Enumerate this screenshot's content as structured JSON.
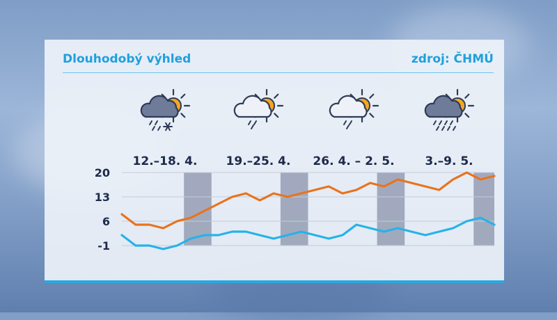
{
  "header": {
    "title": "Dlouhodobý výhled",
    "source": "zdroj: ČHMÚ"
  },
  "weeks": [
    {
      "label": "12.–18. 4.",
      "icon": "cloud-sun-rain-snow-icon"
    },
    {
      "label": "19.–25. 4.",
      "icon": "cloud-sun-drizzle-icon"
    },
    {
      "label": "26. 4. – 2. 5.",
      "icon": "cloud-sun-drizzle-icon"
    },
    {
      "label": "3.–9. 5.",
      "icon": "dark-cloud-sun-rain-icon"
    }
  ],
  "colors": {
    "max": "#e8731e",
    "min": "#26b2ea",
    "weekend": "#8b93ab",
    "grid": "#c3cbdc",
    "text": "#1d2a4a"
  },
  "chart_data": {
    "type": "line",
    "y_ticks": [
      20,
      13,
      6,
      -1
    ],
    "ylim": [
      -1,
      20
    ],
    "grid": true,
    "days": 28,
    "weekend_days": [
      [
        5,
        6
      ],
      [
        12,
        13
      ],
      [
        19,
        20
      ],
      [
        26,
        27
      ]
    ],
    "series": [
      {
        "key": "max",
        "values": [
          8,
          5,
          5,
          4,
          6,
          7,
          9,
          11,
          13,
          14,
          12,
          14,
          13,
          14,
          15,
          16,
          14,
          15,
          17,
          16,
          18,
          17,
          16,
          15,
          18,
          20,
          18,
          19
        ]
      },
      {
        "key": "min",
        "values": [
          2,
          -1,
          -1,
          -2,
          -1,
          1,
          2,
          2,
          3,
          3,
          2,
          1,
          2,
          3,
          2,
          1,
          2,
          5,
          4,
          3,
          4,
          3,
          2,
          3,
          4,
          6,
          7,
          5
        ]
      }
    ]
  }
}
